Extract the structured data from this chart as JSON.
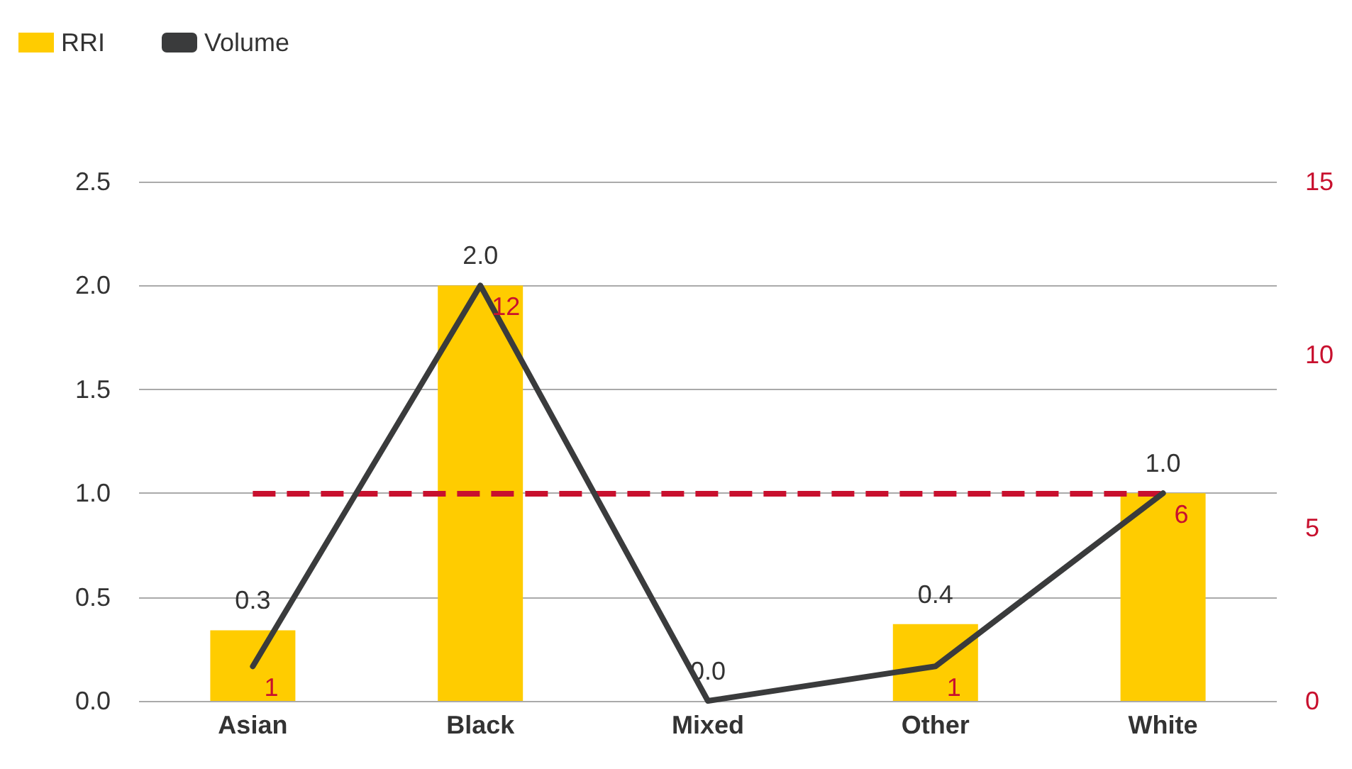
{
  "chart_data": {
    "type": "bar",
    "categories": [
      "Asian",
      "Black",
      "Mixed",
      "Other",
      "White"
    ],
    "series": [
      {
        "name": "RRI",
        "color": "#ffcc00",
        "values": [
          0.34,
          2.0,
          0,
          0.37,
          1.0
        ],
        "value_labels": [
          "0.3",
          "2.0",
          "0.0",
          "0.4",
          "1.0"
        ]
      },
      {
        "name": "Volume",
        "type": "line",
        "axis": "y2",
        "color": "#3a3b3c",
        "values": [
          1,
          12,
          0,
          1,
          6
        ],
        "value_labels": [
          "1",
          "12",
          null,
          "1",
          "6"
        ]
      }
    ],
    "ylim": [
      0,
      2.5
    ],
    "yticks": [
      {
        "value": 0,
        "label": "0.0"
      },
      {
        "value": 0.5,
        "label": "0.5"
      },
      {
        "value": 1,
        "label": "1.0"
      },
      {
        "value": 1.5,
        "label": "1.5"
      },
      {
        "value": 2,
        "label": "2.0"
      },
      {
        "value": 2.5,
        "label": "2.5"
      }
    ],
    "y2lim": [
      0,
      15
    ],
    "y2ticks": [
      0,
      5,
      10,
      15
    ],
    "ref_lines": [
      {
        "axis": "y",
        "value": 1,
        "color": "#c8102e",
        "line_style": "dashed"
      }
    ],
    "grid": "y",
    "legend": "top left",
    "marker": "none",
    "line_style": "solid"
  }
}
